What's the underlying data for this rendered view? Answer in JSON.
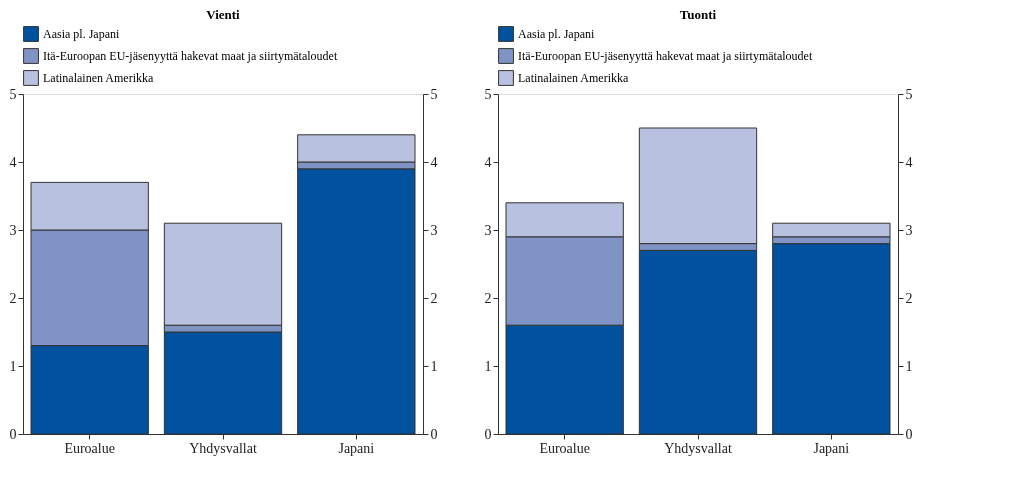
{
  "chart_data": [
    {
      "type": "bar",
      "title": "Vienti",
      "categories": [
        "Euroalue",
        "Yhdysvallat",
        "Japani"
      ],
      "stacked": true,
      "legend": "top left",
      "series": [
        {
          "name": "Aasia pl. Japani",
          "color": "#00519e",
          "values": [
            1.3,
            1.5,
            3.9
          ]
        },
        {
          "name": "Itä-Euroopan EU-jäsenyyttä hakevat maat ja siirtymätaloudet",
          "color": "#7f93c4",
          "values": [
            1.7,
            0.1,
            0.1
          ]
        },
        {
          "name": "Latinalainen Amerikka",
          "color": "#b8c2e0",
          "values": [
            0.7,
            1.5,
            0.4
          ]
        }
      ],
      "ylim": [
        0,
        5
      ],
      "yticks": [
        0,
        1,
        2,
        3,
        4,
        5
      ],
      "y2lim": [
        0,
        5
      ],
      "y2ticks": [
        0,
        1,
        2,
        3,
        4,
        5
      ]
    },
    {
      "type": "bar",
      "title": "Tuonti",
      "categories": [
        "Euroalue",
        "Yhdysvallat",
        "Japani"
      ],
      "stacked": true,
      "legend": "top left",
      "series": [
        {
          "name": "Aasia pl. Japani",
          "color": "#00519e",
          "values": [
            1.6,
            2.7,
            2.8
          ]
        },
        {
          "name": "Itä-Euroopan EU-jäsenyyttä hakevat maat ja siirtymätaloudet",
          "color": "#7f93c4",
          "values": [
            1.3,
            0.1,
            0.1
          ]
        },
        {
          "name": "Latinalainen Amerikka",
          "color": "#b8c2e0",
          "values": [
            0.5,
            1.7,
            0.2
          ]
        }
      ],
      "ylim": [
        0,
        5
      ],
      "yticks": [
        0,
        1,
        2,
        3,
        4,
        5
      ],
      "y2lim": [
        0,
        5
      ],
      "y2ticks": [
        0,
        1,
        2,
        3,
        4,
        5
      ]
    }
  ]
}
